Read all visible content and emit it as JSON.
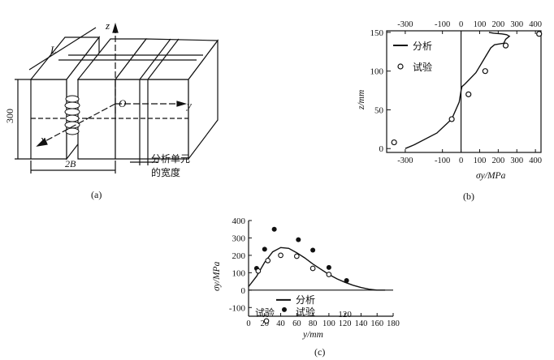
{
  "panel_a": {
    "caption": "(a)",
    "dim_L": "L",
    "dim_300": "300",
    "dim_2B": "2B",
    "axis_z": "z",
    "axis_y": "y",
    "axis_x": "x",
    "origin": "O",
    "callout_line1": "分析单元",
    "callout_line2": "的宽度"
  },
  "chart_data": [
    {
      "panel": "(b)",
      "type": "line",
      "xlabel": "σy/MPa",
      "ylabel": "z/mm",
      "xlim": [
        -400,
        430
      ],
      "ylim": [
        -5,
        152
      ],
      "x_ticks_bottom": [
        "-300",
        "-100",
        "0",
        "100",
        "200",
        "300",
        "400"
      ],
      "x_ticks_top": [
        "-300",
        "-100",
        "0",
        "100",
        "200",
        "300",
        "400"
      ],
      "y_ticks": [
        "0",
        "50",
        "100",
        "150"
      ],
      "legend_position": "upper-left",
      "series": [
        {
          "name": "分析",
          "kind": "line",
          "x": [
            -300,
            -250,
            -130,
            -50,
            -10,
            0,
            5,
            20,
            80,
            130,
            160,
            180,
            230,
            240,
            260,
            245,
            220,
            175,
            150
          ],
          "y": [
            0,
            5,
            20,
            38,
            60,
            75,
            80,
            83,
            98,
            118,
            130,
            134,
            136,
            141,
            145,
            147,
            148,
            149,
            150
          ]
        },
        {
          "name": "试验",
          "kind": "scatter-open",
          "x": [
            -360,
            -50,
            40,
            130,
            240,
            420
          ],
          "y": [
            8,
            38,
            70,
            100,
            133,
            148
          ]
        }
      ]
    },
    {
      "panel": "(c)",
      "type": "line",
      "xlabel": "y/mm",
      "ylabel": "σy/MPa",
      "xlim": [
        0,
        180
      ],
      "ylim": [
        -150,
        400
      ],
      "x_ticks": [
        "0",
        "20",
        "40",
        "60",
        "80",
        "100",
        "120",
        "140",
        "160",
        "180"
      ],
      "y_ticks": [
        "-100",
        "0",
        "100",
        "200",
        "300",
        "400"
      ],
      "annotation": "120",
      "legend_position": "lower-left",
      "series": [
        {
          "name": "分析",
          "kind": "line",
          "x": [
            0,
            10,
            20,
            30,
            40,
            50,
            60,
            70,
            80,
            90,
            100,
            110,
            120,
            130,
            140,
            150,
            160,
            170
          ],
          "y": [
            20,
            80,
            160,
            220,
            245,
            240,
            215,
            185,
            150,
            120,
            90,
            65,
            45,
            28,
            15,
            5,
            0,
            0
          ]
        },
        {
          "name": "试验",
          "kind": "scatter-filled",
          "x": [
            10,
            20,
            32,
            62,
            80,
            100,
            122
          ],
          "y": [
            125,
            235,
            350,
            290,
            230,
            130,
            55
          ]
        },
        {
          "name": "试验",
          "kind": "scatter-open",
          "x": [
            12,
            24,
            40,
            60,
            80,
            100
          ],
          "y": [
            110,
            170,
            200,
            195,
            125,
            90
          ]
        }
      ]
    }
  ]
}
